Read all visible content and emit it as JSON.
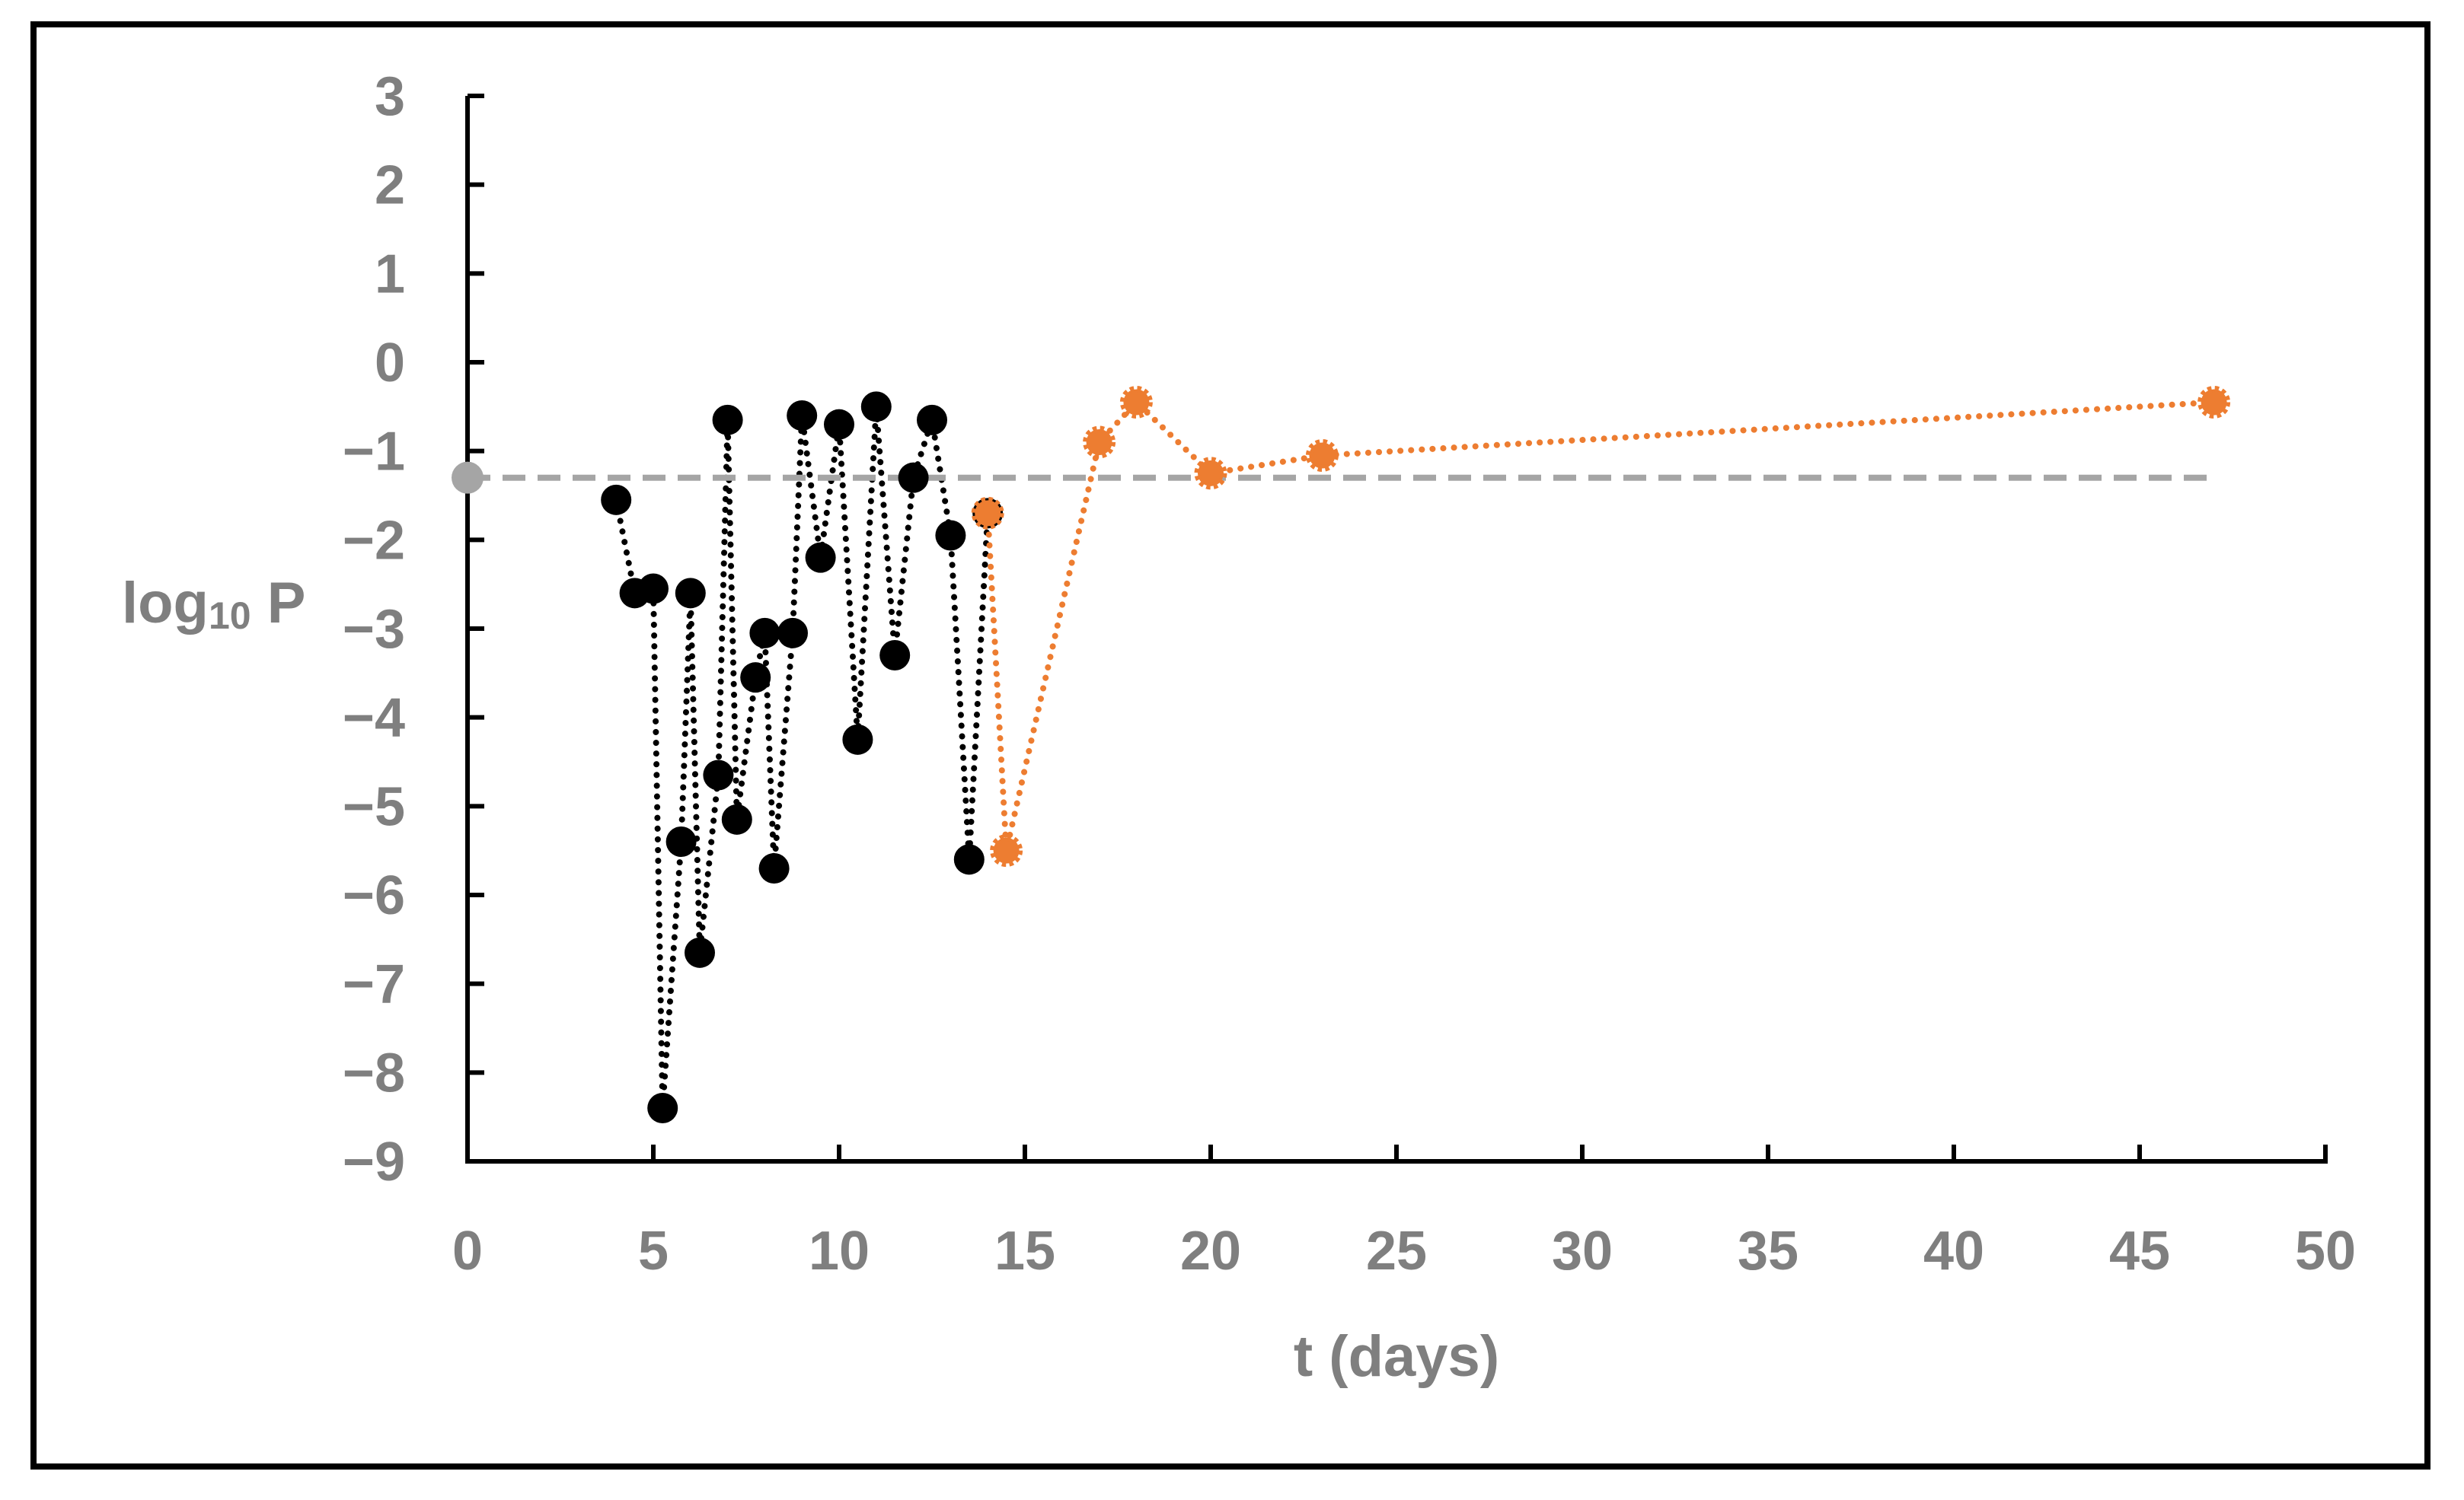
{
  "chart_data": {
    "type": "line",
    "title": "",
    "xlabel": "t (days)",
    "ylabel": "log10 P",
    "ylabel_parts": {
      "base": "log",
      "subscript": "10",
      "suffix": " P"
    },
    "xlim": [
      0,
      50
    ],
    "ylim": [
      -9,
      3
    ],
    "x_ticks": [
      0,
      5,
      10,
      15,
      20,
      25,
      30,
      35,
      40,
      45,
      50
    ],
    "x_tick_labels": [
      "0",
      "5",
      "10",
      "15",
      "20",
      "25",
      "30",
      "35",
      "40",
      "45",
      "50"
    ],
    "y_ticks": [
      3,
      2,
      1,
      0,
      -1,
      -2,
      -3,
      -4,
      -5,
      -6,
      -7,
      -8,
      -9
    ],
    "y_tick_labels": [
      "3",
      "2",
      "1",
      "0",
      "−1",
      "−2",
      "−3",
      "−4",
      "−5",
      "−6",
      "−7",
      "−8",
      "−9"
    ],
    "grid": false,
    "legend": "none",
    "colors": {
      "series_black": "#000000",
      "series_orange": "#ed7d31",
      "threshold": "#a5a5a5",
      "axis": "#000000",
      "text": "#7f7f7f"
    },
    "series": [
      {
        "name": "black",
        "color": "#000000",
        "line": "dotted",
        "marker": "circle",
        "x": [
          4.0,
          4.5,
          5.0,
          5.25,
          5.75,
          6.0,
          6.25,
          6.75,
          7.0,
          7.25,
          7.75,
          8.0,
          8.25,
          8.75,
          9.0,
          9.5,
          10.0,
          10.5,
          11.0,
          11.5,
          12.0,
          12.5,
          13.0,
          13.5,
          14.0
        ],
        "y": [
          -1.55,
          -2.6,
          -2.55,
          -8.4,
          -5.4,
          -2.6,
          -6.65,
          -4.65,
          -0.65,
          -5.15,
          -3.55,
          -3.05,
          -5.7,
          -3.05,
          -0.6,
          -2.2,
          -0.7,
          -4.25,
          -0.5,
          -3.3,
          -1.3,
          -0.65,
          -1.95,
          -5.6,
          -1.7
        ]
      },
      {
        "name": "orange",
        "color": "#ed7d31",
        "line": "dotted",
        "marker": "circle",
        "x": [
          14.0,
          14.5,
          17.0,
          18.0,
          20.0,
          23.0,
          47.0
        ],
        "y": [
          -1.7,
          -5.5,
          -0.9,
          -0.45,
          -1.25,
          -1.05,
          -0.45
        ]
      },
      {
        "name": "threshold",
        "color": "#a5a5a5",
        "line": "dashed",
        "x": [
          0,
          47.0
        ],
        "y": [
          -1.3,
          -1.3
        ],
        "marker_at": 0
      }
    ]
  }
}
